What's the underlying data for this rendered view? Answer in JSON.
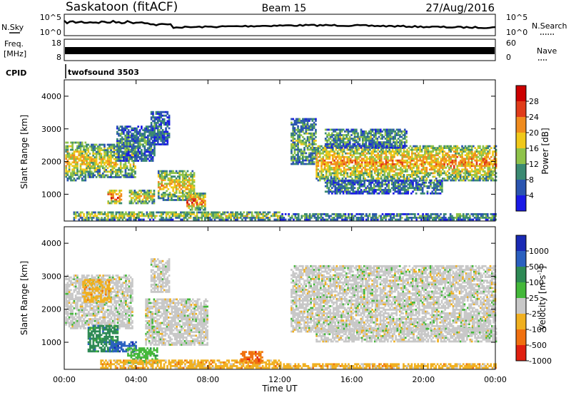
{
  "header": {
    "station": "Saskatoon (fitACF)",
    "beam": "Beam 15",
    "date": "27/Aug/2016"
  },
  "panels": {
    "nsky_label": "N.Sky",
    "nsearch_label": "N.Search",
    "noise_ticks": [
      "10^5",
      "10^0"
    ],
    "freq_label": "Freq.",
    "freq_unit": "[MHz]",
    "freq_ticks": [
      "18",
      "8"
    ],
    "nave_label": "Nave",
    "nave_ticks": [
      "60",
      "0"
    ],
    "cpid_label": "CPID",
    "cpid_value": "twofsound 3503"
  },
  "chart_data": [
    {
      "type": "heatmap",
      "name": "power",
      "ylabel": "Slant Range [km]",
      "ylim": [
        180,
        4500
      ],
      "yticks": [
        "1000",
        "2000",
        "3000",
        "4000"
      ],
      "xlim": [
        0,
        24
      ],
      "colorbar_label": "Power [dB]",
      "colorbar_ticks": [
        "4",
        "8",
        "12",
        "16",
        "20",
        "24",
        "28"
      ],
      "colors": [
        "#1a1ae6",
        "#2b55b0",
        "#3b8a72",
        "#8fc34a",
        "#f0c81a",
        "#f08c1e",
        "#e03c1a",
        "#cc0000"
      ],
      "regions": [
        {
          "t0": 0.05,
          "t1": 1.2,
          "r0": 1400,
          "r1": 2600,
          "intensity": 0.55
        },
        {
          "t0": 1.2,
          "t1": 3.9,
          "r0": 1500,
          "r1": 2500,
          "intensity": 0.5
        },
        {
          "t0": 2.4,
          "t1": 3.2,
          "r0": 700,
          "r1": 1100,
          "intensity": 0.75
        },
        {
          "t0": 2.9,
          "t1": 5.0,
          "r0": 2000,
          "r1": 3100,
          "intensity": 0.25
        },
        {
          "t0": 4.8,
          "t1": 5.8,
          "r0": 2500,
          "r1": 3500,
          "intensity": 0.2
        },
        {
          "t0": 3.6,
          "t1": 5.0,
          "r0": 700,
          "r1": 1100,
          "intensity": 0.55
        },
        {
          "t0": 5.2,
          "t1": 7.2,
          "r0": 800,
          "r1": 1700,
          "intensity": 0.55
        },
        {
          "t0": 6.8,
          "t1": 7.8,
          "r0": 500,
          "r1": 1000,
          "intensity": 0.7
        },
        {
          "t0": 0.5,
          "t1": 12.0,
          "r0": 200,
          "r1": 450,
          "intensity": 0.45
        },
        {
          "t0": 12.0,
          "t1": 24.0,
          "r0": 200,
          "r1": 380,
          "intensity": 0.3
        },
        {
          "t0": 12.6,
          "t1": 14.0,
          "r0": 1900,
          "r1": 3300,
          "intensity": 0.35
        },
        {
          "t0": 14.0,
          "t1": 24.0,
          "r0": 1400,
          "r1": 2500,
          "intensity": 0.62
        },
        {
          "t0": 14.5,
          "t1": 21.0,
          "r0": 1000,
          "r1": 1400,
          "intensity": 0.25
        },
        {
          "t0": 14.5,
          "t1": 19.0,
          "r0": 2400,
          "r1": 3000,
          "intensity": 0.3
        }
      ]
    },
    {
      "type": "heatmap",
      "name": "velocity",
      "ylabel": "Slant Range [km]",
      "ylim": [
        180,
        4500
      ],
      "yticks": [
        "1000",
        "2000",
        "3000",
        "4000"
      ],
      "xlim": [
        0,
        24
      ],
      "xticks": [
        "00:00",
        "04:00",
        "08:00",
        "12:00",
        "16:00",
        "20:00",
        "00:00"
      ],
      "xlabel": "Time UT",
      "colorbar_label": "Velocity [m s^-1]",
      "colorbar_ticks": [
        "1000",
        "500",
        "100",
        "25",
        "-25",
        "-100",
        "-500",
        "-1000"
      ],
      "colors": [
        "#1a2ab4",
        "#2a60c0",
        "#2e8a55",
        "#44b83a",
        "#c8c8c8",
        "#f0b020",
        "#f07010",
        "#e02010"
      ],
      "regions": [
        {
          "t0": 0.05,
          "t1": 3.8,
          "r0": 1400,
          "r1": 3000,
          "class": 4
        },
        {
          "t0": 1.0,
          "t1": 2.6,
          "r0": 2200,
          "r1": 2900,
          "class": 5
        },
        {
          "t0": 1.3,
          "t1": 3.0,
          "r0": 700,
          "r1": 1500,
          "class": 2
        },
        {
          "t0": 2.5,
          "t1": 4.0,
          "r0": 700,
          "r1": 1000,
          "class": 1
        },
        {
          "t0": 3.5,
          "t1": 5.2,
          "r0": 350,
          "r1": 800,
          "class": 3
        },
        {
          "t0": 4.5,
          "t1": 8.0,
          "r0": 900,
          "r1": 2300,
          "class": 4
        },
        {
          "t0": 4.8,
          "t1": 5.8,
          "r0": 2500,
          "r1": 3500,
          "class": 4
        },
        {
          "t0": 2.0,
          "t1": 12.0,
          "r0": 200,
          "r1": 450,
          "class": 5
        },
        {
          "t0": 9.8,
          "t1": 11.0,
          "r0": 350,
          "r1": 700,
          "class": 6
        },
        {
          "t0": 12.0,
          "t1": 24.0,
          "r0": 200,
          "r1": 350,
          "class": 5
        },
        {
          "t0": 12.6,
          "t1": 24.0,
          "r0": 1300,
          "r1": 3300,
          "class": 4
        },
        {
          "t0": 14.0,
          "t1": 24.0,
          "r0": 1000,
          "r1": 1400,
          "class": 4
        }
      ]
    }
  ]
}
